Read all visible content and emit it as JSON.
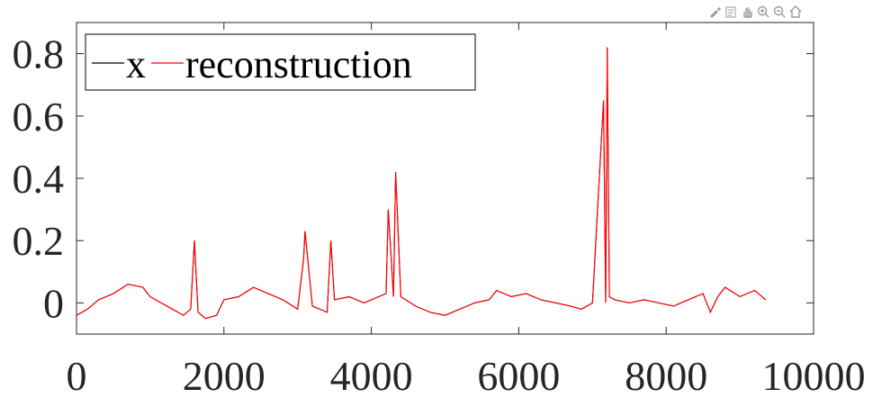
{
  "toolbar": {
    "icons": [
      "brush-icon",
      "data-tips-icon",
      "pan-hand-icon",
      "zoom-in-icon",
      "zoom-out-icon",
      "home-icon"
    ]
  },
  "colors": {
    "x_series": "#000000",
    "reconstruction_series": "#ff0000",
    "axes": "#262626",
    "background": "#ffffff"
  },
  "chart_data": {
    "type": "line",
    "title": "",
    "xlabel": "",
    "ylabel": "",
    "xlim": [
      0,
      10000
    ],
    "ylim": [
      -0.1,
      0.9
    ],
    "x_ticks": [
      0,
      2000,
      4000,
      6000,
      8000,
      10000
    ],
    "x_tick_labels": [
      "0",
      "2000",
      "4000",
      "6000",
      "8000",
      "10000"
    ],
    "y_ticks": [
      0,
      0.2,
      0.4,
      0.6,
      0.8
    ],
    "y_tick_labels": [
      "0",
      "0.2",
      "0.4",
      "0.6",
      "0.8"
    ],
    "grid": false,
    "legend_position": "top-left",
    "series": [
      {
        "name": "x",
        "color": "#000000",
        "x": [
          0,
          150,
          300,
          500,
          700,
          900,
          1000,
          1150,
          1300,
          1450,
          1550,
          1600,
          1650,
          1750,
          1900,
          2000,
          2200,
          2400,
          2600,
          2800,
          3000,
          3080,
          3100,
          3200,
          3400,
          3450,
          3500,
          3700,
          3900,
          4100,
          4200,
          4230,
          4300,
          4330,
          4400,
          4600,
          4800,
          5000,
          5200,
          5400,
          5600,
          5700,
          5900,
          6100,
          6300,
          6500,
          6700,
          6850,
          7000,
          7150,
          7180,
          7200,
          7230,
          7300,
          7500,
          7700,
          7900,
          8100,
          8300,
          8500,
          8600,
          8700,
          8800,
          9000,
          9200,
          9350
        ],
        "values": [
          -0.04,
          -0.02,
          0.01,
          0.03,
          0.06,
          0.05,
          0.02,
          0.0,
          -0.02,
          -0.04,
          -0.02,
          0.2,
          -0.03,
          -0.05,
          -0.04,
          0.01,
          0.02,
          0.05,
          0.03,
          0.01,
          -0.02,
          0.14,
          0.23,
          -0.01,
          -0.03,
          0.2,
          0.01,
          0.02,
          0.0,
          0.02,
          0.03,
          0.3,
          0.02,
          0.42,
          0.02,
          -0.01,
          -0.03,
          -0.04,
          -0.02,
          0.0,
          0.01,
          0.04,
          0.02,
          0.03,
          0.01,
          0.0,
          -0.01,
          -0.02,
          0.0,
          0.65,
          0.0,
          0.82,
          0.02,
          0.01,
          0.0,
          0.01,
          0.0,
          -0.01,
          0.01,
          0.03,
          -0.03,
          0.02,
          0.05,
          0.02,
          0.04,
          0.01
        ]
      },
      {
        "name": "reconstruction",
        "color": "#ff0000",
        "x": [
          0,
          150,
          300,
          500,
          700,
          900,
          1000,
          1150,
          1300,
          1450,
          1550,
          1600,
          1650,
          1750,
          1900,
          2000,
          2200,
          2400,
          2600,
          2800,
          3000,
          3080,
          3100,
          3200,
          3400,
          3450,
          3500,
          3700,
          3900,
          4100,
          4200,
          4230,
          4300,
          4330,
          4400,
          4600,
          4800,
          5000,
          5200,
          5400,
          5600,
          5700,
          5900,
          6100,
          6300,
          6500,
          6700,
          6850,
          7000,
          7150,
          7180,
          7200,
          7230,
          7300,
          7500,
          7700,
          7900,
          8100,
          8300,
          8500,
          8600,
          8700,
          8800,
          9000,
          9200,
          9350
        ],
        "values": [
          -0.04,
          -0.02,
          0.01,
          0.03,
          0.06,
          0.05,
          0.02,
          0.0,
          -0.02,
          -0.04,
          -0.02,
          0.2,
          -0.03,
          -0.05,
          -0.04,
          0.01,
          0.02,
          0.05,
          0.03,
          0.01,
          -0.02,
          0.14,
          0.23,
          -0.01,
          -0.03,
          0.2,
          0.01,
          0.02,
          0.0,
          0.02,
          0.03,
          0.3,
          0.02,
          0.42,
          0.02,
          -0.01,
          -0.03,
          -0.04,
          -0.02,
          0.0,
          0.01,
          0.04,
          0.02,
          0.03,
          0.01,
          0.0,
          -0.01,
          -0.02,
          0.0,
          0.65,
          0.0,
          0.82,
          0.02,
          0.01,
          0.0,
          0.01,
          0.0,
          -0.01,
          0.01,
          0.03,
          -0.03,
          0.02,
          0.05,
          0.02,
          0.04,
          0.01
        ]
      }
    ]
  }
}
